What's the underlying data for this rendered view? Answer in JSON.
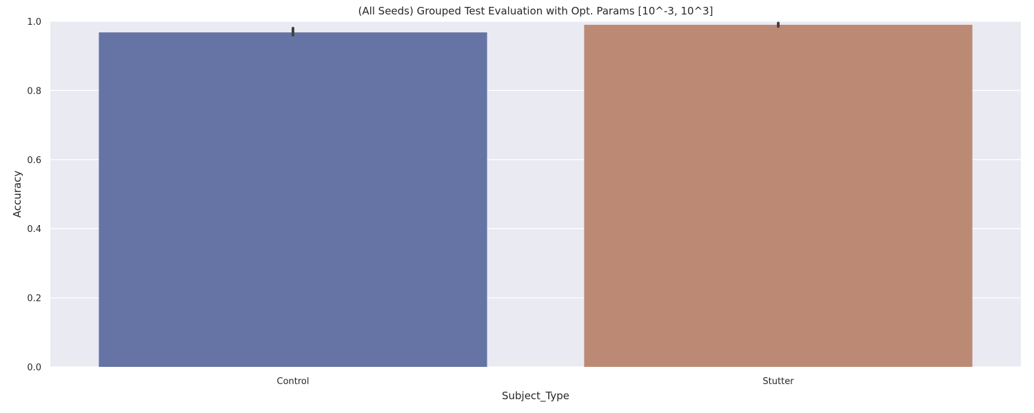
{
  "chart_data": {
    "type": "bar",
    "title": "(All Seeds) Grouped Test Evaluation with Opt. Params [10^-3, 10^3]",
    "xlabel": "Subject_Type",
    "ylabel": "Accuracy",
    "categories": [
      "Control",
      "Stutter"
    ],
    "values": [
      0.968,
      0.99
    ],
    "error_bars": [
      [
        0.96,
        0.98
      ],
      [
        0.985,
        0.995
      ]
    ],
    "colors": [
      "#6574a5",
      "#bc8a74"
    ],
    "errorbar_color": "#424242",
    "background": "#eaeaf2",
    "grid": true,
    "ylim": [
      0,
      1
    ],
    "yticks": [
      "0.0",
      "0.2",
      "0.4",
      "0.6",
      "0.8",
      "1.0"
    ]
  }
}
